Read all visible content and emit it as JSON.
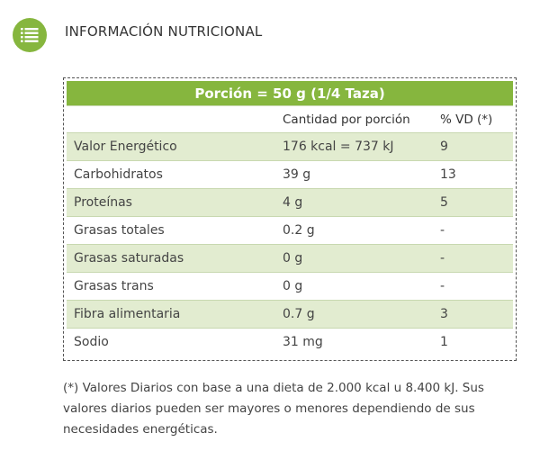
{
  "header": {
    "title": "INFORMACIÓN NUTRICIONAL",
    "icon": "list-icon"
  },
  "table": {
    "portion": "Porción = 50 g (1/4 Taza)",
    "columns": [
      "",
      "Cantidad por porción",
      "% VD (*)"
    ],
    "rows": [
      [
        "Valor Energético",
        "176 kcal = 737 kJ",
        "9"
      ],
      [
        "Carbohidratos",
        "39 g",
        "13"
      ],
      [
        "Proteínas",
        "4 g",
        "5"
      ],
      [
        "Grasas totales",
        "0.2 g",
        "-"
      ],
      [
        "Grasas saturadas",
        "0 g",
        "-"
      ],
      [
        "Grasas trans",
        "0 g",
        "-"
      ],
      [
        "Fibra alimentaria",
        "0.7 g",
        "3"
      ],
      [
        "Sodio",
        "31 mg",
        "1"
      ]
    ]
  },
  "note": "(*) Valores Diarios con base a una dieta de 2.000 kcal u 8.400 kJ. Sus valores diarios pueden ser mayores o menores dependiendo de sus necesidades energéticas.",
  "colors": {
    "accent": "#86b63e",
    "shade": "#e2ecd0"
  }
}
